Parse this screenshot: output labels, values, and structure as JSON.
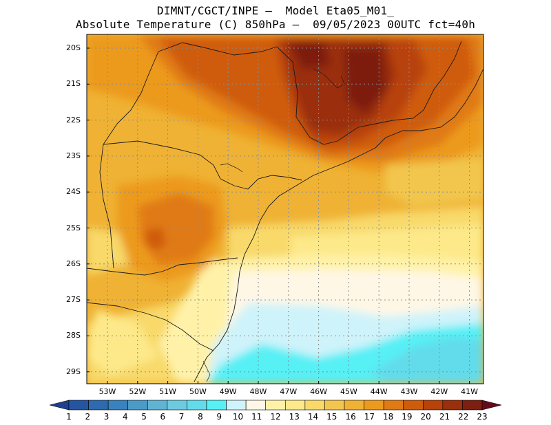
{
  "header": {
    "line1": "DIMNT/CGCT/INPE —  Model Eta05_M01_",
    "line2": "Absolute Temperature (C) 850hPa —  09/05/2023 00UTC fct=40h"
  },
  "map": {
    "lat_labels": [
      "20S",
      "21S",
      "22S",
      "23S",
      "24S",
      "25S",
      "26S",
      "27S",
      "28S",
      "29S"
    ],
    "lon_labels": [
      "53W",
      "52W",
      "51W",
      "50W",
      "49W",
      "48W",
      "47W",
      "46W",
      "45W",
      "44W",
      "43W",
      "42W",
      "41W"
    ],
    "grid_lines": "dotted"
  },
  "colorbar": {
    "labels": [
      "1",
      "2",
      "3",
      "4",
      "5",
      "6",
      "7",
      "8",
      "9",
      "10",
      "11",
      "12",
      "13",
      "14",
      "15",
      "16",
      "17",
      "18",
      "19",
      "20",
      "21",
      "22",
      "23"
    ],
    "colors": [
      "#1f3f8f",
      "#2555a0",
      "#2d6aaf",
      "#3a82bd",
      "#4b9bc9",
      "#5fb4d4",
      "#6ccbe0",
      "#62dceb",
      "#56f0f5",
      "#cff3fa",
      "#fff7e6",
      "#fff2a8",
      "#fde98a",
      "#f8d96a",
      "#f2c64e",
      "#efb234",
      "#ec9a1e",
      "#e07a14",
      "#cf5c0c",
      "#b8420a",
      "#9a2f0c",
      "#7d1f10",
      "#640a1c"
    ]
  }
}
